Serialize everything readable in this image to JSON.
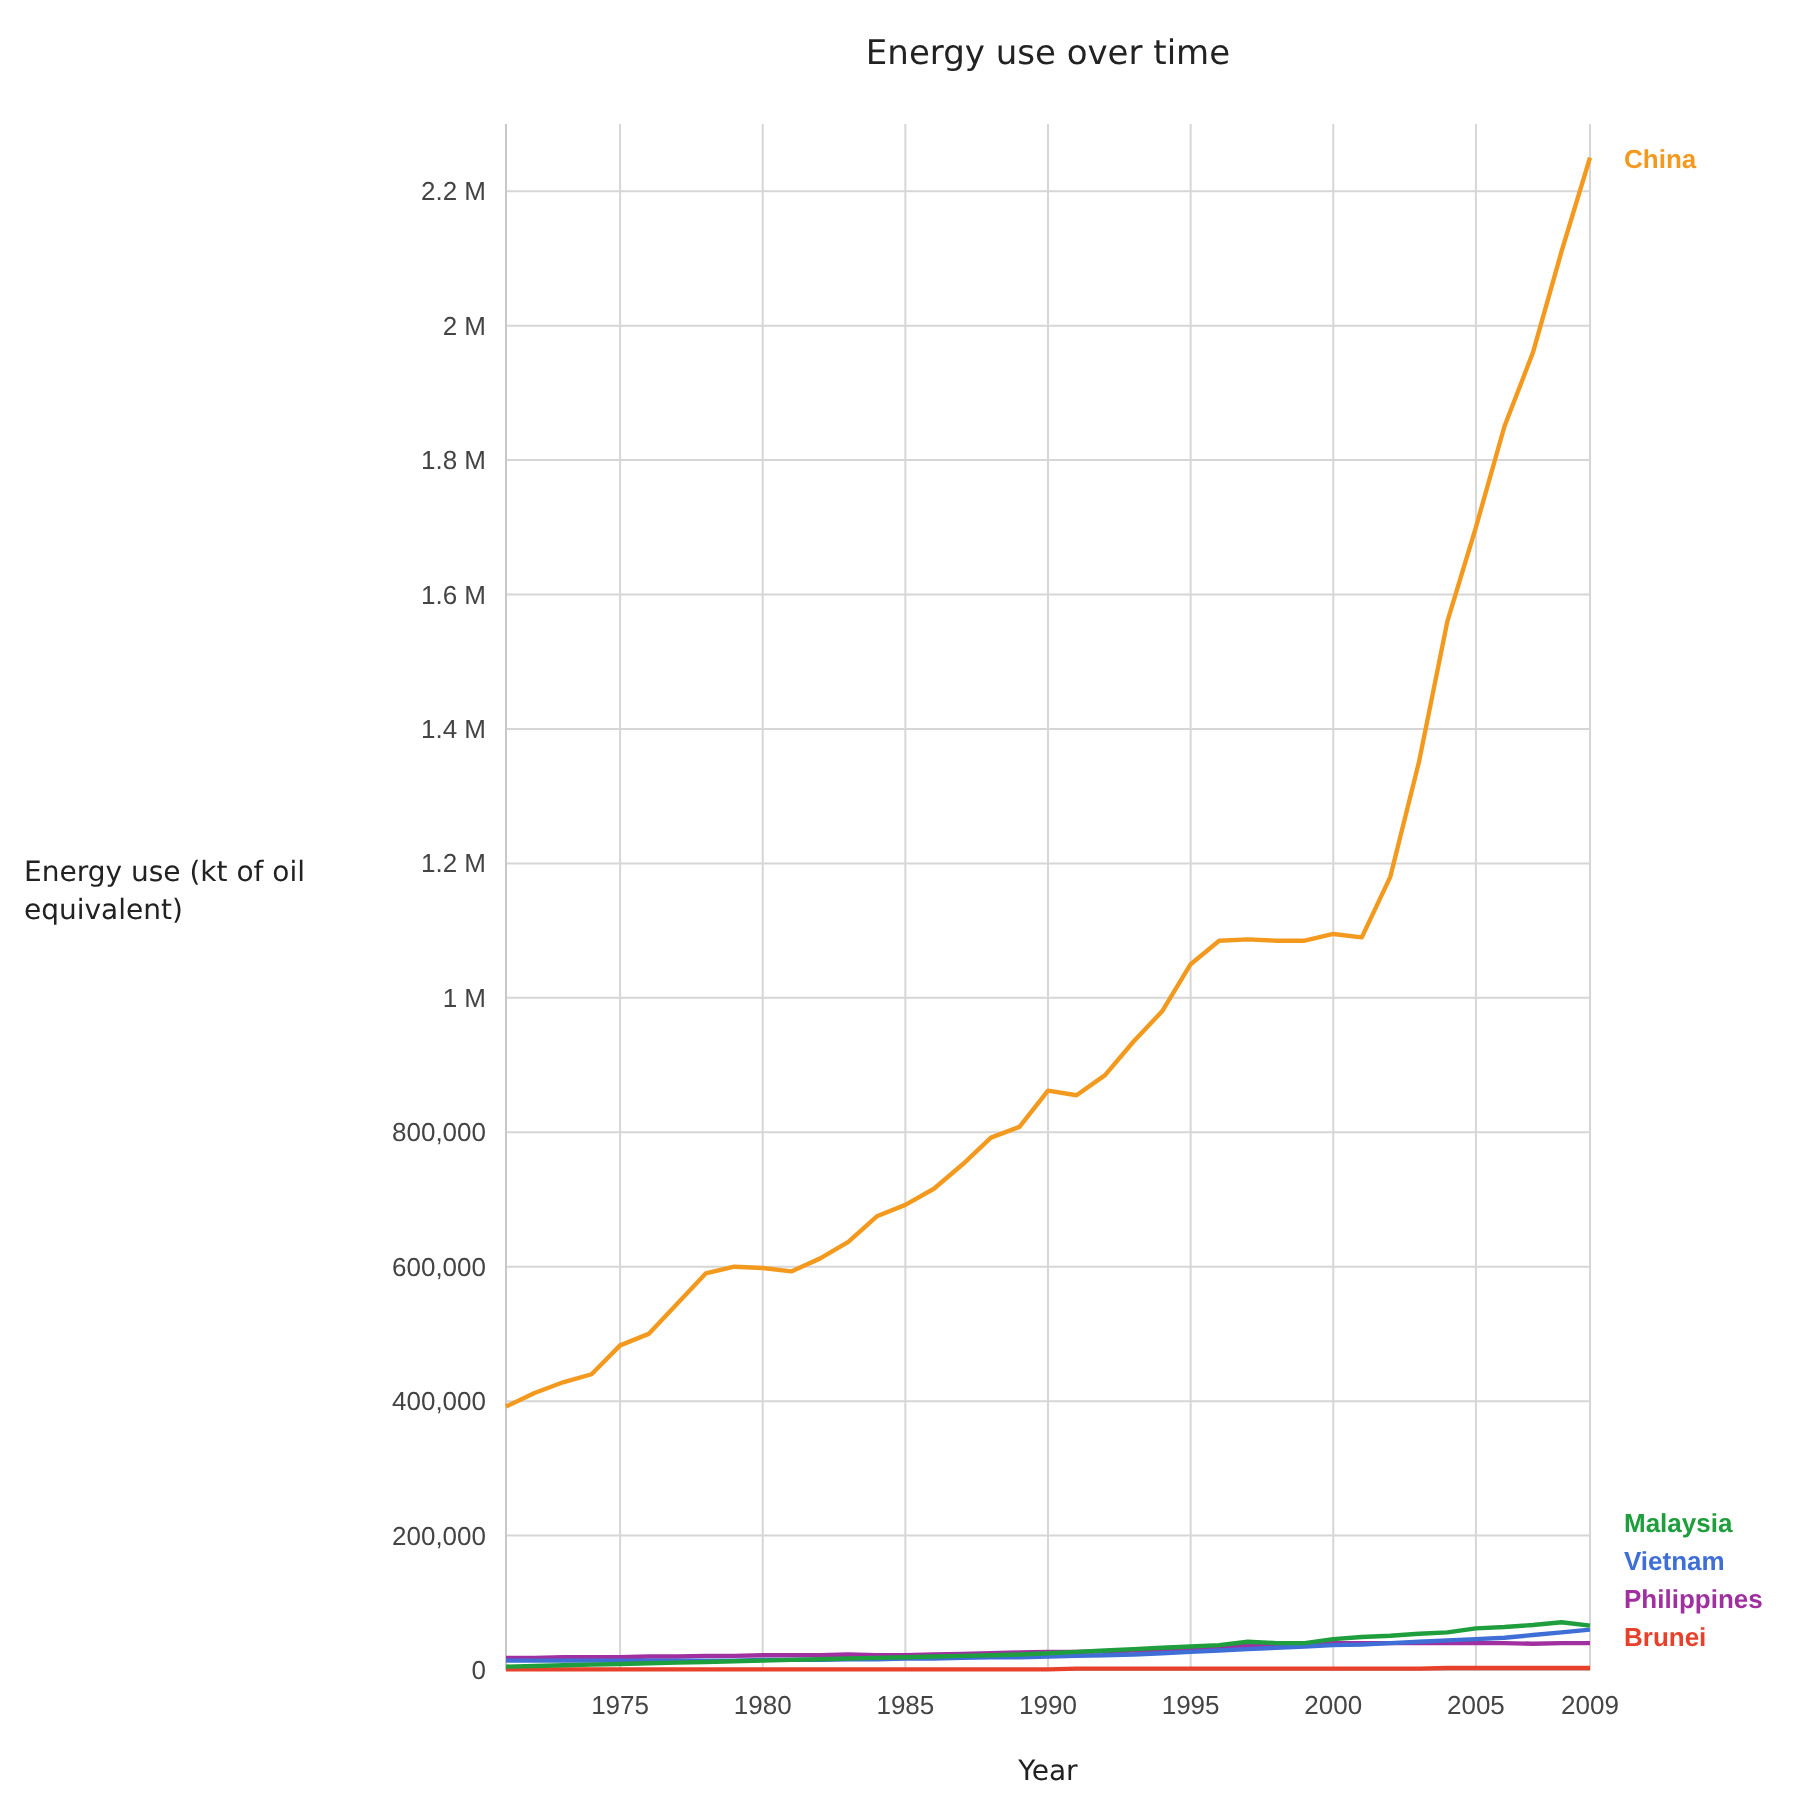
{
  "chart_data": {
    "type": "line",
    "title": "Energy use over time",
    "xlabel": "Year",
    "ylabel": "Energy use (kt of oil equivalent)",
    "x": [
      1971,
      1972,
      1973,
      1974,
      1975,
      1976,
      1977,
      1978,
      1979,
      1980,
      1981,
      1982,
      1983,
      1984,
      1985,
      1986,
      1987,
      1988,
      1989,
      1990,
      1991,
      1992,
      1993,
      1994,
      1995,
      1996,
      1997,
      1998,
      1999,
      2000,
      2001,
      2002,
      2003,
      2004,
      2005,
      2006,
      2007,
      2008,
      2009
    ],
    "series": [
      {
        "name": "China",
        "color": "#f39a1e",
        "values": [
          392000,
          412000,
          428000,
          440000,
          483000,
          500000,
          545000,
          590000,
          600000,
          598000,
          593000,
          612000,
          637000,
          675000,
          692000,
          716000,
          752000,
          792000,
          808000,
          862000,
          855000,
          885000,
          935000,
          980000,
          1050000,
          1085000,
          1087000,
          1085000,
          1085000,
          1095000,
          1090000,
          1180000,
          1350000,
          1560000,
          1700000,
          1850000,
          1960000,
          2110000,
          2250000
        ]
      },
      {
        "name": "Malaysia",
        "color": "#1e9e3c",
        "values": [
          5000,
          6000,
          7000,
          8000,
          9000,
          10000,
          11000,
          12000,
          13000,
          14000,
          15000,
          16000,
          17000,
          18000,
          19000,
          20000,
          21000,
          22000,
          23000,
          25000,
          27000,
          29000,
          31000,
          33000,
          35000,
          37000,
          42000,
          40000,
          40000,
          46000,
          49000,
          51000,
          54000,
          56000,
          62000,
          64000,
          67000,
          71000,
          66000
        ]
      },
      {
        "name": "Vietnam",
        "color": "#3f6fd6",
        "values": [
          14000,
          14000,
          14000,
          14000,
          14000,
          14000,
          14000,
          14000,
          14000,
          15000,
          15000,
          15000,
          16000,
          16000,
          17000,
          17000,
          18000,
          19000,
          19000,
          20000,
          21000,
          22000,
          23000,
          25000,
          27000,
          29000,
          31000,
          33000,
          35000,
          37000,
          38000,
          40000,
          42000,
          44000,
          46000,
          48000,
          52000,
          56000,
          60000
        ]
      },
      {
        "name": "Philippines",
        "color": "#a030a0",
        "values": [
          18000,
          18000,
          19000,
          19000,
          19000,
          20000,
          20000,
          21000,
          21000,
          22000,
          22000,
          22000,
          23000,
          22000,
          22000,
          23000,
          24000,
          25000,
          26000,
          27000,
          27000,
          28000,
          29000,
          30000,
          32000,
          34000,
          36000,
          38000,
          38000,
          40000,
          40000,
          40000,
          40000,
          40000,
          40000,
          40000,
          39000,
          40000,
          40000
        ]
      },
      {
        "name": "Brunei",
        "color": "#e8412b",
        "values": [
          1000,
          1000,
          1000,
          1000,
          1000,
          1000,
          1000,
          1000,
          1000,
          1000,
          1000,
          1000,
          1000,
          1000,
          1000,
          1000,
          1000,
          1000,
          1000,
          1000,
          2000,
          2000,
          2000,
          2000,
          2000,
          2000,
          2000,
          2000,
          2000,
          2000,
          2000,
          2000,
          2000,
          3000,
          3000,
          3000,
          3000,
          3000,
          3000
        ]
      }
    ],
    "xlim": [
      1971,
      2009
    ],
    "xticks": [
      1975,
      1980,
      1985,
      1990,
      1995,
      2000,
      2005,
      2009
    ],
    "ylim": [
      0,
      2300000
    ],
    "yticks": [
      {
        "value": 0,
        "label": "0"
      },
      {
        "value": 200000,
        "label": "200,000"
      },
      {
        "value": 400000,
        "label": "400,000"
      },
      {
        "value": 600000,
        "label": "600,000"
      },
      {
        "value": 800000,
        "label": "800,000"
      },
      {
        "value": 1000000,
        "label": "1 M"
      },
      {
        "value": 1200000,
        "label": "1.2 M"
      },
      {
        "value": 1400000,
        "label": "1.4 M"
      },
      {
        "value": 1600000,
        "label": "1.6 M"
      },
      {
        "value": 1800000,
        "label": "1.8 M"
      },
      {
        "value": 2000000,
        "label": "2 M"
      },
      {
        "value": 2200000,
        "label": "2.2 M"
      }
    ],
    "grid": true,
    "legend": "right",
    "line_style": "solid"
  }
}
